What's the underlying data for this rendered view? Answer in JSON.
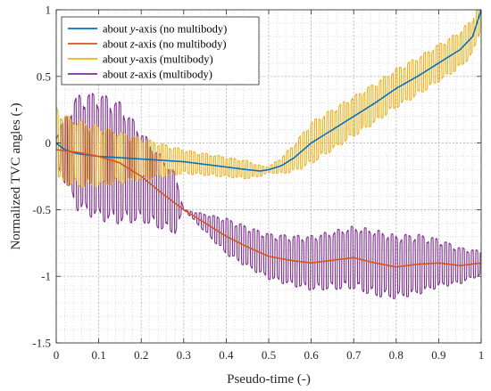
{
  "chart_data": {
    "type": "line",
    "xlabel": "Pseudo-time (-)",
    "ylabel": "Normalized TVC angles (-)",
    "xlim": [
      0,
      1
    ],
    "ylim": [
      -1.5,
      1
    ],
    "xticks": [
      0,
      0.1,
      0.2,
      0.3,
      0.4,
      0.5,
      0.6,
      0.7,
      0.8,
      0.9,
      1
    ],
    "yticks": [
      -1.5,
      -1,
      -0.5,
      0,
      0.5,
      1
    ],
    "xtick_labels": [
      "0",
      "0.1",
      "0.2",
      "0.3",
      "0.4",
      "0.5",
      "0.6",
      "0.7",
      "0.8",
      "0.9",
      "1"
    ],
    "ytick_labels": [
      "-1.5",
      "-1",
      "-0.5",
      "0",
      "0.5",
      "1"
    ],
    "grid": true,
    "minor_grid": true,
    "legend_position": "top-left",
    "series": [
      {
        "name_prefix": "about ",
        "name_axis": "y",
        "name_suffix": "-axis (no multibody)",
        "color": "#0072BD",
        "x": [
          0,
          0.02,
          0.05,
          0.1,
          0.15,
          0.2,
          0.25,
          0.3,
          0.35,
          0.4,
          0.45,
          0.48,
          0.5,
          0.53,
          0.56,
          0.6,
          0.65,
          0.7,
          0.75,
          0.8,
          0.85,
          0.9,
          0.95,
          0.98,
          1.0
        ],
        "y": [
          0,
          -0.05,
          -0.08,
          -0.1,
          -0.11,
          -0.12,
          -0.13,
          -0.14,
          -0.16,
          -0.18,
          -0.2,
          -0.21,
          -0.2,
          -0.17,
          -0.11,
          0.0,
          0.1,
          0.2,
          0.3,
          0.41,
          0.5,
          0.6,
          0.7,
          0.8,
          1.0
        ]
      },
      {
        "name_prefix": "about ",
        "name_axis": "z",
        "name_suffix": "-axis (no multibody)",
        "color": "#D95319",
        "x": [
          0,
          0.05,
          0.1,
          0.15,
          0.2,
          0.25,
          0.3,
          0.35,
          0.4,
          0.45,
          0.5,
          0.55,
          0.6,
          0.65,
          0.7,
          0.75,
          0.8,
          0.85,
          0.9,
          0.95,
          1.0
        ],
        "y": [
          -0.05,
          -0.07,
          -0.1,
          -0.15,
          -0.25,
          -0.38,
          -0.5,
          -0.6,
          -0.7,
          -0.78,
          -0.85,
          -0.88,
          -0.9,
          -0.88,
          -0.86,
          -0.9,
          -0.93,
          -0.91,
          -0.9,
          -0.92,
          -0.9
        ]
      },
      {
        "name_prefix": "about ",
        "name_axis": "y",
        "name_suffix": "-axis (multibody)",
        "color": "#EDB120",
        "base_x": [
          0,
          0.02,
          0.05,
          0.1,
          0.15,
          0.2,
          0.25,
          0.3,
          0.35,
          0.4,
          0.45,
          0.48,
          0.5,
          0.53,
          0.56,
          0.6,
          0.65,
          0.7,
          0.75,
          0.8,
          0.85,
          0.9,
          0.95,
          0.98,
          1.0
        ],
        "base_y": [
          0,
          -0.05,
          -0.08,
          -0.1,
          -0.11,
          -0.12,
          -0.13,
          -0.14,
          -0.16,
          -0.18,
          -0.2,
          -0.21,
          -0.2,
          -0.17,
          -0.11,
          0.0,
          0.1,
          0.2,
          0.3,
          0.41,
          0.5,
          0.6,
          0.7,
          0.8,
          1.0
        ],
        "amp_x": [
          0,
          0.1,
          0.2,
          0.3,
          0.45,
          0.5,
          0.6,
          1.0
        ],
        "amp_y": [
          0.24,
          0.2,
          0.14,
          0.08,
          0.06,
          0.02,
          0.14,
          0.12
        ],
        "period": 0.0095,
        "squareness": 0.9
      },
      {
        "name_prefix": "about ",
        "name_axis": "z",
        "name_suffix": "-axis (multibody)",
        "color": "#7E2F8E",
        "base_x": [
          0,
          0.05,
          0.1,
          0.15,
          0.2,
          0.25,
          0.3,
          0.35,
          0.4,
          0.45,
          0.5,
          0.55,
          0.6,
          0.65,
          0.7,
          0.75,
          0.8,
          0.85,
          0.9,
          0.95,
          1.0
        ],
        "base_y": [
          -0.05,
          -0.07,
          -0.1,
          -0.15,
          -0.25,
          -0.38,
          -0.5,
          -0.6,
          -0.7,
          -0.78,
          -0.85,
          -0.88,
          -0.9,
          -0.88,
          -0.86,
          -0.9,
          -0.93,
          -0.91,
          -0.9,
          -0.92,
          -0.9
        ],
        "amp_x": [
          0,
          0.05,
          0.1,
          0.15,
          0.2,
          0.28,
          0.3,
          0.4,
          0.6,
          0.75,
          0.85,
          0.9,
          1.0
        ],
        "amp_y": [
          0.1,
          0.38,
          0.42,
          0.4,
          0.3,
          0.2,
          0.0,
          0.12,
          0.18,
          0.22,
          0.2,
          0.16,
          0.08
        ],
        "period": 0.0105,
        "squareness": 0.6
      }
    ]
  }
}
